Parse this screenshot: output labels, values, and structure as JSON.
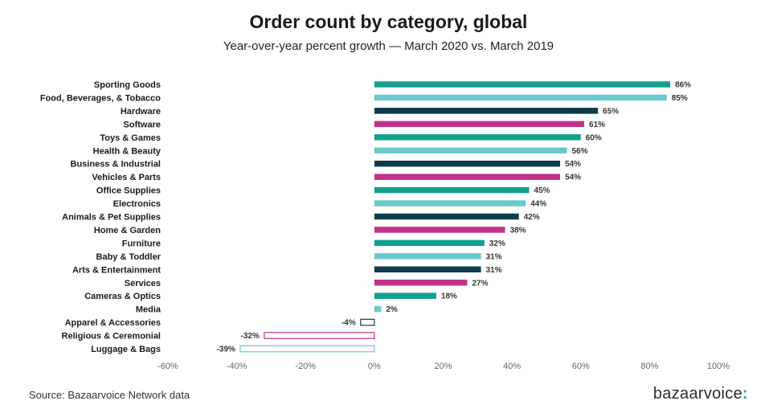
{
  "title": "Order count by category, global",
  "subtitle": "Year-over-year percent growth — March 2020 vs. March 2019",
  "source": "Source: Bazaarvoice Network data",
  "logo": {
    "text": "bazaarvoice",
    "mark": ":"
  },
  "colors": [
    "#12a08f",
    "#6cc9cb",
    "#0f3c4c",
    "#c1328a"
  ],
  "chart_data": {
    "type": "bar",
    "orientation": "horizontal",
    "title": "Order count by category, global",
    "subtitle": "Year-over-year percent growth — March 2020 vs. March 2019",
    "xlim": [
      -60,
      100
    ],
    "x_ticks": [
      -60,
      -40,
      -20,
      0,
      20,
      40,
      60,
      80,
      100
    ],
    "x_tick_labels": [
      "-60%",
      "-40%",
      "-20%",
      "0%",
      "20%",
      "40%",
      "60%",
      "80%",
      "100%"
    ],
    "grid": false,
    "categories": [
      "Sporting Goods",
      "Food, Beverages, & Tobacco",
      "Hardware",
      "Software",
      "Toys & Games",
      "Health & Beauty",
      "Business & Industrial",
      "Vehicles & Parts",
      "Office Supplies",
      "Electronics",
      "Animals & Pet Supplies",
      "Home & Garden",
      "Furniture",
      "Baby & Toddler",
      "Arts & Entertainment",
      "Services",
      "Cameras & Optics",
      "Media",
      "Apparel & Accessories",
      "Religious & Ceremonial",
      "Luggage & Bags"
    ],
    "values": [
      86,
      85,
      65,
      61,
      60,
      56,
      54,
      54,
      45,
      44,
      42,
      38,
      32,
      31,
      31,
      27,
      18,
      2,
      -4,
      -32,
      -39
    ],
    "value_labels": [
      "86%",
      "85%",
      "65%",
      "61%",
      "60%",
      "56%",
      "54%",
      "54%",
      "45%",
      "44%",
      "42%",
      "38%",
      "32%",
      "31%",
      "31%",
      "27%",
      "18%",
      "2%",
      "-4%",
      "-32%",
      "-39%"
    ],
    "bar_colors": [
      "#12a08f",
      "#6cc9cb",
      "#0f3c4c",
      "#c1328a",
      "#12a08f",
      "#6cc9cb",
      "#0f3c4c",
      "#c1328a",
      "#12a08f",
      "#6cc9cb",
      "#0f3c4c",
      "#c1328a",
      "#12a08f",
      "#6cc9cb",
      "#0f3c4c",
      "#c1328a",
      "#12a08f",
      "#6cc9cb",
      "#0f3c4c",
      "#c1328a",
      "#6cc9cb"
    ],
    "negative_bars_outlined": true
  }
}
